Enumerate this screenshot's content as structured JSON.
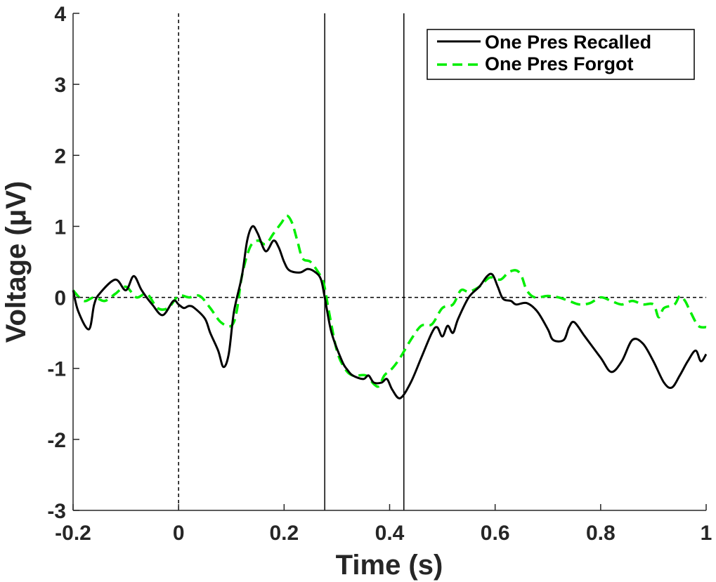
{
  "chart_data": {
    "type": "line",
    "xlabel": "Time (s)",
    "ylabel": "Voltage (μV)",
    "xlim": [
      -0.2,
      1.0
    ],
    "ylim": [
      -3,
      4
    ],
    "xticks": [
      -0.2,
      0,
      0.2,
      0.4,
      0.6,
      0.8,
      1.0
    ],
    "xtick_labels": [
      "-0.2",
      "0",
      "0.2",
      "0.4",
      "0.6",
      "0.8",
      "1"
    ],
    "yticks": [
      -3,
      -2,
      -1,
      0,
      1,
      2,
      3,
      4
    ],
    "ytick_labels": [
      "-3",
      "-2",
      "-1",
      "0",
      "1",
      "2",
      "3",
      "4"
    ],
    "grid": false,
    "legend_position": "top-right",
    "reference_lines": {
      "zero_voltage_dashed": 0,
      "stimulus_onset_dashed": 0,
      "window_solid": [
        0.277,
        0.427
      ]
    },
    "series": [
      {
        "name": "One Pres Recalled",
        "color": "#000000",
        "style": "solid",
        "points": [
          [
            -0.2,
            0.1
          ],
          [
            -0.19,
            -0.2
          ],
          [
            -0.17,
            -0.45
          ],
          [
            -0.16,
            -0.1
          ],
          [
            -0.15,
            0.05
          ],
          [
            -0.12,
            0.25
          ],
          [
            -0.1,
            0.1
          ],
          [
            -0.085,
            0.3
          ],
          [
            -0.07,
            0.1
          ],
          [
            -0.05,
            -0.1
          ],
          [
            -0.03,
            -0.25
          ],
          [
            -0.01,
            -0.05
          ],
          [
            0.0,
            -0.1
          ],
          [
            0.01,
            -0.15
          ],
          [
            0.02,
            -0.12
          ],
          [
            0.03,
            -0.15
          ],
          [
            0.05,
            -0.3
          ],
          [
            0.06,
            -0.5
          ],
          [
            0.075,
            -0.75
          ],
          [
            0.085,
            -0.98
          ],
          [
            0.095,
            -0.8
          ],
          [
            0.105,
            -0.2
          ],
          [
            0.12,
            0.3
          ],
          [
            0.13,
            0.8
          ],
          [
            0.14,
            1.0
          ],
          [
            0.15,
            0.9
          ],
          [
            0.165,
            0.65
          ],
          [
            0.18,
            0.8
          ],
          [
            0.19,
            0.7
          ],
          [
            0.2,
            0.5
          ],
          [
            0.21,
            0.38
          ],
          [
            0.23,
            0.35
          ],
          [
            0.245,
            0.4
          ],
          [
            0.26,
            0.35
          ],
          [
            0.27,
            0.25
          ],
          [
            0.277,
            0.0
          ],
          [
            0.29,
            -0.5
          ],
          [
            0.31,
            -0.9
          ],
          [
            0.32,
            -1.02
          ],
          [
            0.33,
            -1.1
          ],
          [
            0.35,
            -1.15
          ],
          [
            0.36,
            -1.1
          ],
          [
            0.37,
            -1.2
          ],
          [
            0.385,
            -1.2
          ],
          [
            0.395,
            -1.15
          ],
          [
            0.405,
            -1.3
          ],
          [
            0.42,
            -1.42
          ],
          [
            0.44,
            -1.2
          ],
          [
            0.46,
            -0.85
          ],
          [
            0.48,
            -0.5
          ],
          [
            0.49,
            -0.42
          ],
          [
            0.5,
            -0.55
          ],
          [
            0.51,
            -0.4
          ],
          [
            0.52,
            -0.5
          ],
          [
            0.53,
            -0.3
          ],
          [
            0.55,
            0.0
          ],
          [
            0.57,
            0.15
          ],
          [
            0.585,
            0.3
          ],
          [
            0.595,
            0.32
          ],
          [
            0.605,
            0.15
          ],
          [
            0.615,
            -0.02
          ],
          [
            0.63,
            -0.05
          ],
          [
            0.64,
            -0.1
          ],
          [
            0.66,
            -0.08
          ],
          [
            0.68,
            -0.2
          ],
          [
            0.7,
            -0.45
          ],
          [
            0.71,
            -0.6
          ],
          [
            0.73,
            -0.6
          ],
          [
            0.74,
            -0.42
          ],
          [
            0.75,
            -0.35
          ],
          [
            0.77,
            -0.55
          ],
          [
            0.8,
            -0.85
          ],
          [
            0.82,
            -1.05
          ],
          [
            0.84,
            -0.9
          ],
          [
            0.86,
            -0.6
          ],
          [
            0.88,
            -0.65
          ],
          [
            0.9,
            -0.9
          ],
          [
            0.92,
            -1.2
          ],
          [
            0.935,
            -1.27
          ],
          [
            0.95,
            -1.1
          ],
          [
            0.965,
            -0.9
          ],
          [
            0.98,
            -0.75
          ],
          [
            0.99,
            -0.9
          ],
          [
            1.0,
            -0.8
          ]
        ]
      },
      {
        "name": "One Pres Forgot",
        "color": "#00ee00",
        "style": "dashed",
        "points": [
          [
            -0.2,
            0.1
          ],
          [
            -0.18,
            -0.05
          ],
          [
            -0.16,
            0.0
          ],
          [
            -0.14,
            -0.05
          ],
          [
            -0.12,
            0.05
          ],
          [
            -0.1,
            0.15
          ],
          [
            -0.08,
            0.0
          ],
          [
            -0.06,
            0.05
          ],
          [
            -0.04,
            -0.15
          ],
          [
            -0.02,
            -0.15
          ],
          [
            0.0,
            0.02
          ],
          [
            0.02,
            0.0
          ],
          [
            0.04,
            0.02
          ],
          [
            0.06,
            -0.15
          ],
          [
            0.08,
            -0.35
          ],
          [
            0.1,
            -0.4
          ],
          [
            0.11,
            -0.2
          ],
          [
            0.12,
            0.3
          ],
          [
            0.135,
            0.7
          ],
          [
            0.15,
            0.8
          ],
          [
            0.165,
            0.75
          ],
          [
            0.18,
            0.9
          ],
          [
            0.195,
            1.05
          ],
          [
            0.205,
            1.15
          ],
          [
            0.215,
            1.05
          ],
          [
            0.225,
            0.8
          ],
          [
            0.235,
            0.55
          ],
          [
            0.25,
            0.5
          ],
          [
            0.265,
            0.35
          ],
          [
            0.275,
            0.2
          ],
          [
            0.285,
            -0.2
          ],
          [
            0.3,
            -0.75
          ],
          [
            0.315,
            -1.0
          ],
          [
            0.33,
            -1.1
          ],
          [
            0.355,
            -1.1
          ],
          [
            0.37,
            -1.22
          ],
          [
            0.38,
            -1.25
          ],
          [
            0.39,
            -1.1
          ],
          [
            0.405,
            -1.0
          ],
          [
            0.42,
            -0.85
          ],
          [
            0.44,
            -0.6
          ],
          [
            0.46,
            -0.4
          ],
          [
            0.48,
            -0.38
          ],
          [
            0.5,
            -0.15
          ],
          [
            0.52,
            -0.1
          ],
          [
            0.535,
            0.1
          ],
          [
            0.55,
            0.08
          ],
          [
            0.57,
            0.15
          ],
          [
            0.59,
            0.28
          ],
          [
            0.61,
            0.25
          ],
          [
            0.625,
            0.35
          ],
          [
            0.64,
            0.38
          ],
          [
            0.65,
            0.3
          ],
          [
            0.66,
            0.1
          ],
          [
            0.675,
            0.0
          ],
          [
            0.7,
            0.02
          ],
          [
            0.72,
            0.0
          ],
          [
            0.74,
            -0.05
          ],
          [
            0.76,
            -0.1
          ],
          [
            0.78,
            -0.08
          ],
          [
            0.8,
            0.0
          ],
          [
            0.82,
            -0.05
          ],
          [
            0.84,
            -0.1
          ],
          [
            0.86,
            -0.05
          ],
          [
            0.88,
            -0.1
          ],
          [
            0.9,
            -0.1
          ],
          [
            0.91,
            -0.28
          ],
          [
            0.92,
            -0.15
          ],
          [
            0.94,
            -0.1
          ],
          [
            0.95,
            0.02
          ],
          [
            0.96,
            -0.05
          ],
          [
            0.97,
            -0.2
          ],
          [
            0.985,
            -0.4
          ],
          [
            1.0,
            -0.42
          ]
        ]
      }
    ]
  }
}
